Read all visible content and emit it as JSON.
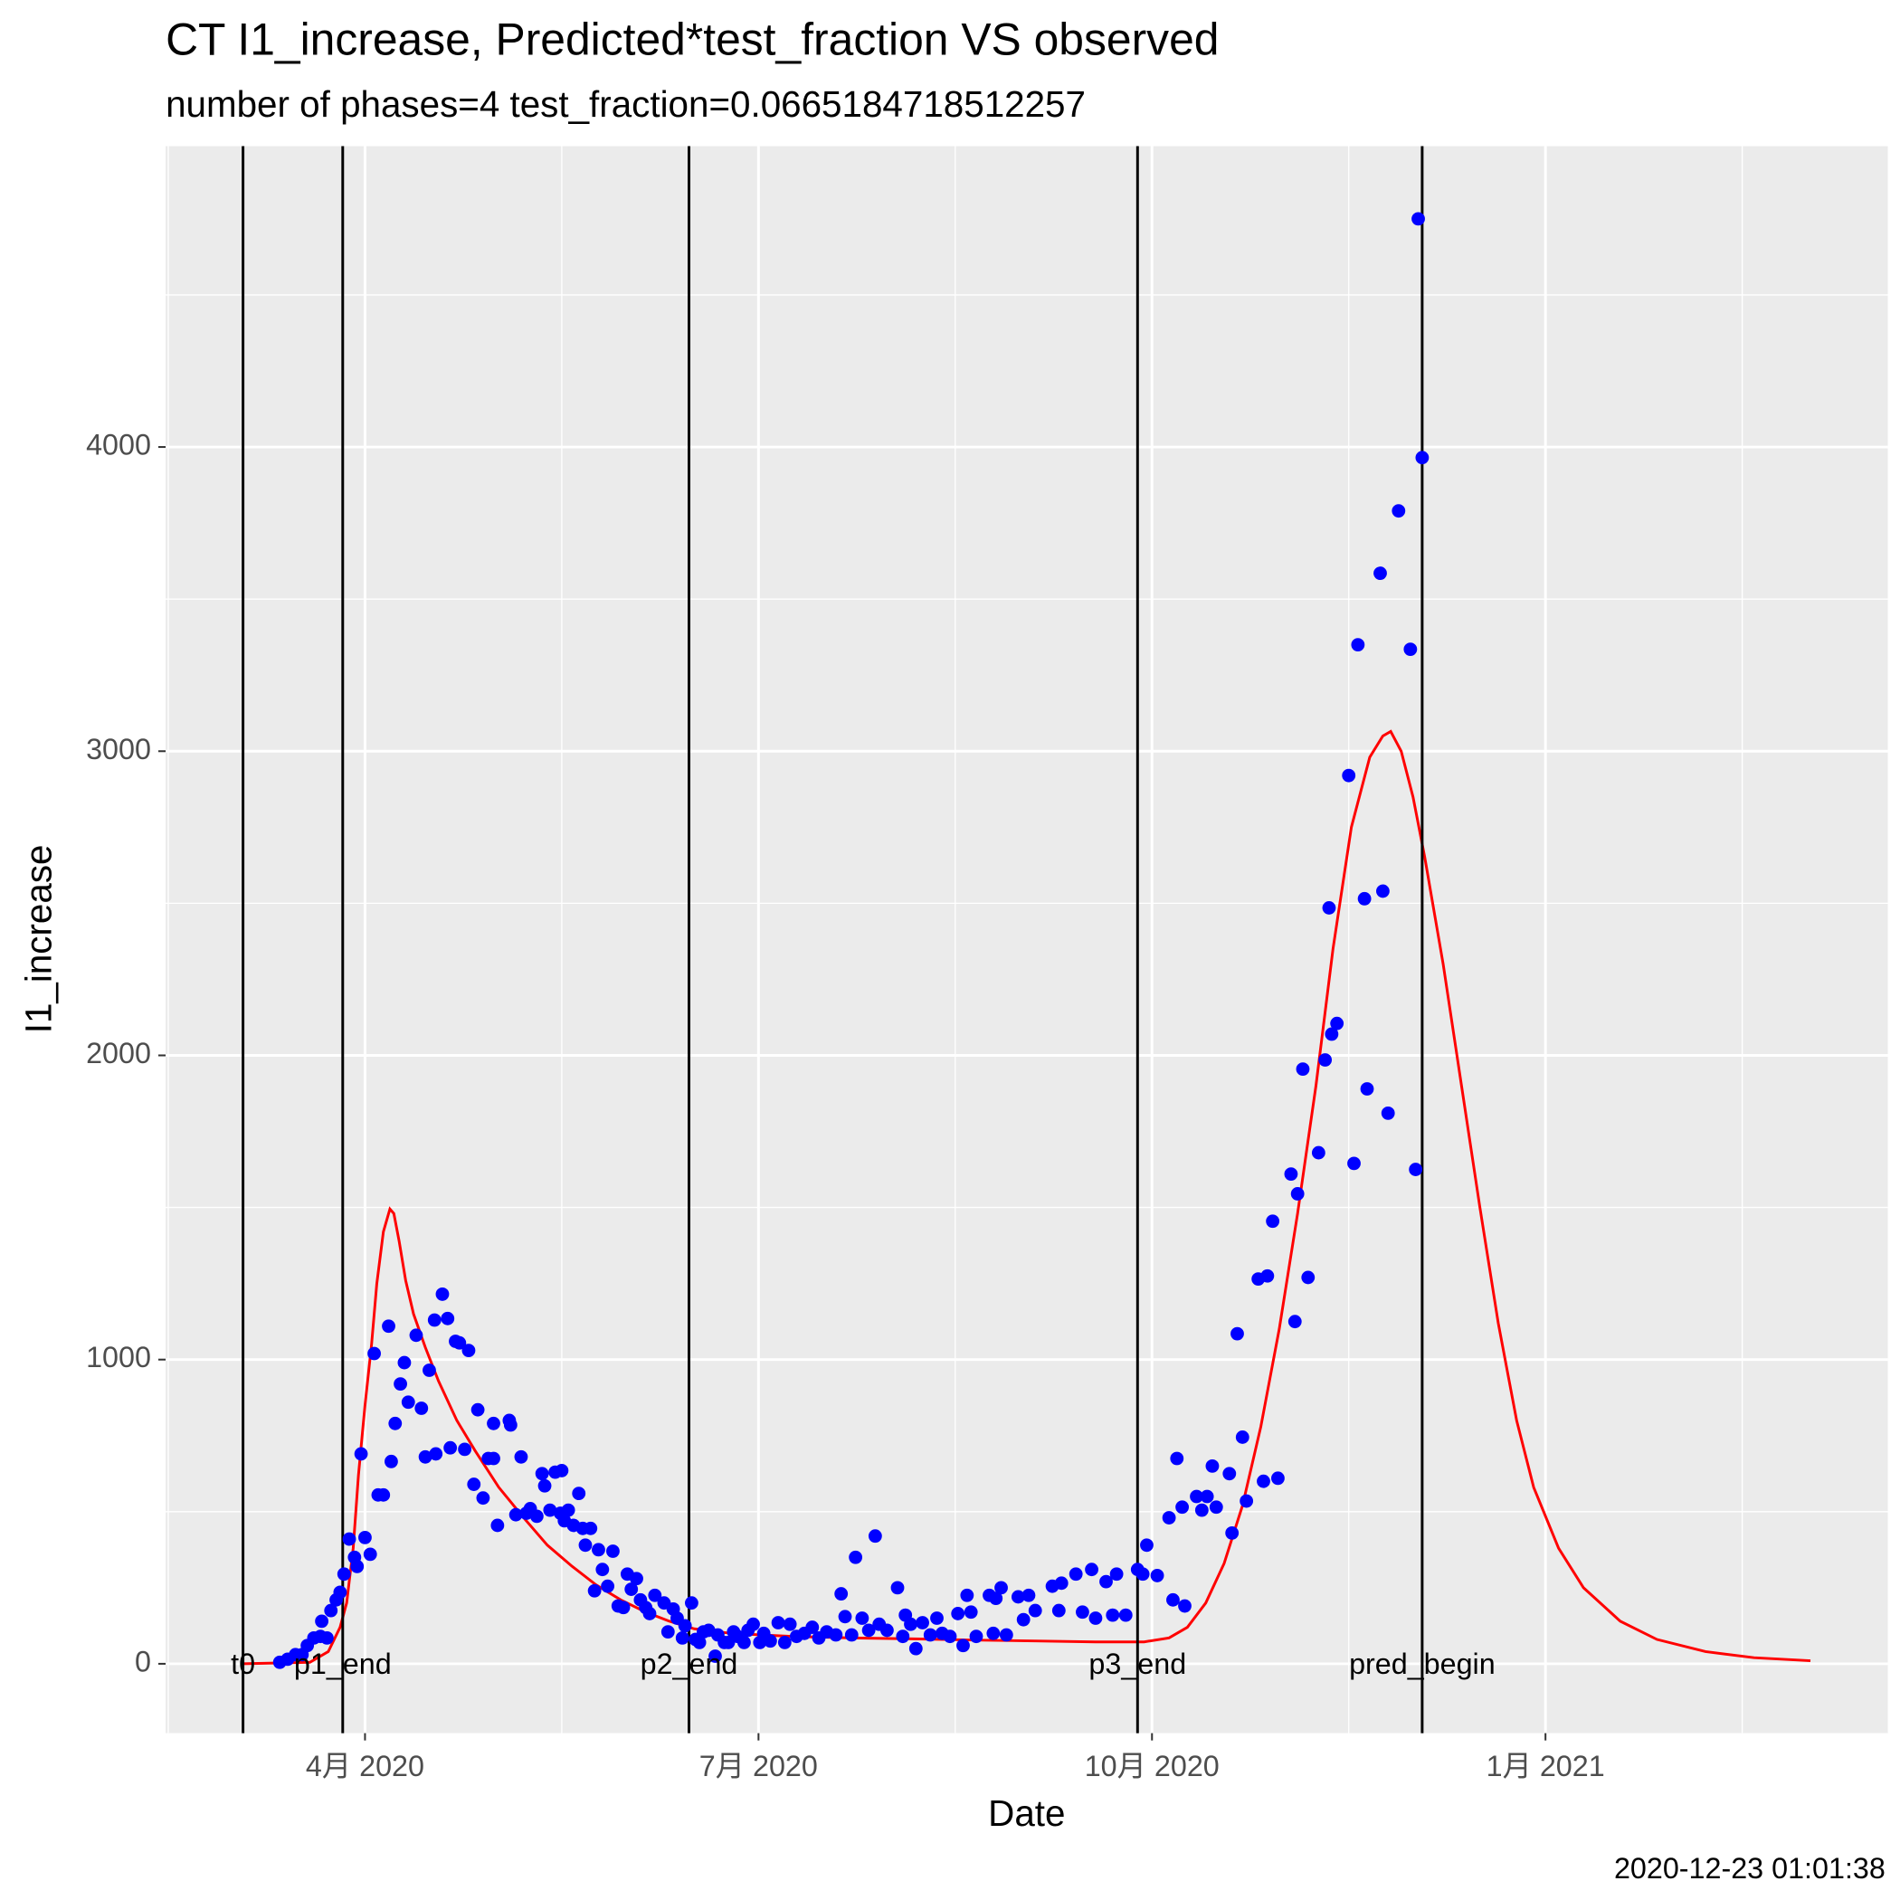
{
  "chart_data": {
    "type": "scatter",
    "title": "CT I1_increase, Predicted*test_fraction VS observed",
    "subtitle": "number of phases=4   test_fraction=0.0665184718512257",
    "x_label": "Date",
    "y_label": "I1_increase",
    "caption": "2020-12-23 01:01:38",
    "xlim": [
      2.48,
      15.61
    ],
    "xticks": [
      {
        "value": 4,
        "label": "4月 2020"
      },
      {
        "value": 7,
        "label": "7月 2020"
      },
      {
        "value": 10,
        "label": "10月 2020"
      },
      {
        "value": 13,
        "label": "1月 2021"
      }
    ],
    "ylim": [
      -228,
      4989
    ],
    "yticks": [
      0,
      1000,
      2000,
      3000,
      4000
    ],
    "grid": true,
    "vlines": [
      {
        "label": "t0",
        "x": 3.07
      },
      {
        "label": "p1_end",
        "x": 3.83
      },
      {
        "label": "p2_end",
        "x": 6.47
      },
      {
        "label": "p3_end",
        "x": 9.89
      },
      {
        "label": "pred_begin",
        "x": 12.06
      }
    ],
    "points": {
      "color": "#0000ff",
      "x": [
        3.35,
        3.41,
        3.47,
        3.52,
        3.56,
        3.61,
        3.67,
        3.66,
        3.71,
        3.74,
        3.78,
        3.81,
        3.84,
        3.88,
        3.92,
        3.94,
        3.97,
        4.0,
        4.04,
        4.07,
        4.1,
        4.14,
        4.18,
        4.2,
        4.23,
        4.27,
        4.3,
        4.33,
        4.39,
        4.43,
        4.46,
        4.49,
        4.53,
        4.54,
        4.59,
        4.63,
        4.65,
        4.69,
        4.72,
        4.76,
        4.79,
        4.83,
        4.86,
        4.9,
        4.94,
        4.98,
        4.98,
        5.01,
        5.1,
        5.11,
        5.15,
        5.19,
        5.23,
        5.26,
        5.31,
        5.35,
        5.37,
        5.41,
        5.45,
        5.49,
        5.5,
        5.52,
        5.55,
        5.59,
        5.63,
        5.66,
        5.68,
        5.72,
        5.75,
        5.78,
        5.81,
        5.85,
        5.89,
        5.93,
        5.97,
        6.0,
        6.03,
        6.07,
        6.1,
        6.14,
        6.17,
        6.21,
        6.28,
        6.31,
        6.35,
        6.38,
        6.42,
        6.44,
        6.49,
        6.52,
        6.55,
        6.58,
        6.62,
        6.67,
        6.69,
        6.74,
        6.77,
        6.81,
        6.84,
        6.89,
        6.92,
        6.96,
        7.01,
        7.04,
        7.09,
        7.15,
        7.2,
        7.24,
        7.29,
        7.35,
        7.41,
        7.46,
        7.52,
        7.59,
        7.63,
        7.66,
        7.71,
        7.74,
        7.79,
        7.84,
        7.89,
        7.92,
        7.98,
        8.06,
        8.1,
        8.12,
        8.16,
        8.2,
        8.25,
        8.31,
        8.36,
        8.4,
        8.46,
        8.52,
        8.56,
        8.59,
        8.62,
        8.66,
        8.76,
        8.79,
        8.81,
        8.85,
        8.89,
        8.98,
        9.02,
        9.06,
        9.11,
        9.24,
        9.31,
        9.29,
        9.42,
        9.47,
        9.54,
        9.57,
        9.65,
        9.7,
        9.73,
        9.8,
        9.89,
        9.93,
        9.96,
        10.04,
        10.13,
        10.16,
        10.19,
        10.23,
        10.25,
        10.34,
        10.38,
        10.42,
        10.46,
        10.49,
        10.59,
        10.61,
        10.65,
        10.69,
        10.72,
        10.81,
        10.85,
        10.88,
        10.92,
        10.96,
        11.06,
        11.09,
        11.11,
        11.15,
        11.19,
        11.27,
        11.32,
        11.35,
        11.37,
        11.41,
        11.5,
        11.54,
        11.57,
        11.62,
        11.64,
        11.74,
        11.76,
        11.8,
        11.88,
        11.97,
        12.01,
        12.03,
        12.06
      ],
      "values": [
        5,
        15,
        30,
        30,
        60,
        85,
        140,
        90,
        85,
        175,
        210,
        235,
        295,
        410,
        350,
        320,
        690,
        415,
        360,
        1020,
        555,
        555,
        1110,
        665,
        790,
        920,
        990,
        860,
        1080,
        840,
        680,
        965,
        1130,
        690,
        1215,
        1135,
        710,
        1060,
        1055,
        705,
        1030,
        590,
        835,
        545,
        675,
        675,
        790,
        455,
        800,
        785,
        490,
        680,
        495,
        510,
        485,
        625,
        585,
        505,
        630,
        495,
        635,
        470,
        505,
        455,
        560,
        445,
        390,
        445,
        240,
        375,
        310,
        255,
        370,
        190,
        185,
        295,
        245,
        280,
        210,
        185,
        165,
        225,
        200,
        105,
        180,
        150,
        85,
        125,
        200,
        80,
        70,
        105,
        110,
        25,
        95,
        70,
        70,
        105,
        90,
        70,
        110,
        130,
        70,
        100,
        75,
        135,
        70,
        130,
        90,
        100,
        120,
        85,
        105,
        95,
        230,
        155,
        95,
        350,
        150,
        110,
        420,
        130,
        110,
        250,
        90,
        160,
        130,
        50,
        135,
        95,
        150,
        100,
        90,
        165,
        60,
        225,
        170,
        90,
        225,
        100,
        215,
        250,
        95,
        220,
        145,
        225,
        175,
        255,
        265,
        175,
        295,
        170,
        310,
        150,
        270,
        160,
        295,
        160,
        310,
        295,
        390,
        290,
        480,
        210,
        675,
        515,
        190,
        550,
        505,
        550,
        650,
        515,
        625,
        430,
        1085,
        745,
        535,
        1265,
        600,
        1275,
        1455,
        610,
        1610,
        1125,
        1545,
        1955,
        1270,
        1680,
        1985,
        2485,
        2070,
        2105,
        2920,
        1645,
        3350,
        2515,
        1890,
        3585,
        2540,
        1810,
        3790,
        3335,
        1625,
        4750,
        3965
      ]
    },
    "line": {
      "color": "#ff0000",
      "x": [
        3.07,
        3.58,
        3.72,
        3.81,
        3.86,
        3.91,
        3.95,
        4.0,
        4.05,
        4.09,
        4.14,
        4.19,
        4.22,
        4.26,
        4.31,
        4.37,
        4.46,
        4.56,
        4.7,
        4.84,
        5.02,
        5.21,
        5.39,
        5.58,
        5.76,
        5.95,
        6.14,
        6.32,
        6.51,
        6.79,
        7.25,
        7.72,
        8.18,
        8.64,
        9.11,
        9.57,
        9.94,
        10.13,
        10.27,
        10.41,
        10.55,
        10.69,
        10.83,
        10.97,
        11.11,
        11.25,
        11.38,
        11.52,
        11.66,
        11.76,
        11.82,
        11.9,
        11.99,
        12.08,
        12.22,
        12.36,
        12.5,
        12.64,
        12.78,
        12.91,
        13.1,
        13.29,
        13.57,
        13.85,
        14.22,
        14.59,
        15.02
      ],
      "values": [
        0,
        5,
        40,
        120,
        200,
        380,
        620,
        850,
        1050,
        1250,
        1420,
        1495,
        1480,
        1390,
        1260,
        1150,
        1040,
        930,
        800,
        700,
        580,
        480,
        390,
        320,
        260,
        210,
        170,
        140,
        115,
        100,
        90,
        85,
        82,
        78,
        75,
        72,
        72,
        85,
        120,
        200,
        330,
        520,
        780,
        1100,
        1480,
        1900,
        2350,
        2750,
        2980,
        3050,
        3065,
        3000,
        2850,
        2650,
        2300,
        1900,
        1500,
        1120,
        800,
        580,
        380,
        250,
        140,
        80,
        40,
        20,
        10
      ]
    }
  }
}
